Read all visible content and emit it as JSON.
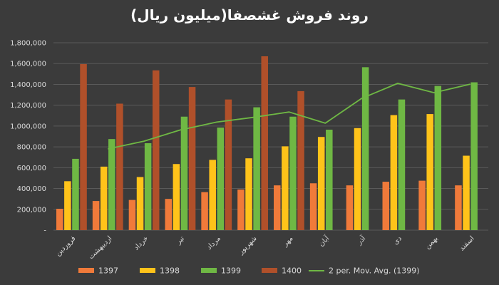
{
  "chart_data": {
    "type": "bar",
    "title": "روند فروش غشصفا(میلیون ریال)",
    "xlabel": "",
    "ylabel": "",
    "ylim": [
      0,
      1800000
    ],
    "yticks": [
      0,
      200000,
      400000,
      600000,
      800000,
      1000000,
      1200000,
      1400000,
      1600000,
      1800000
    ],
    "ytick_labels": [
      "-",
      "200,000",
      "400,000",
      "600,000",
      "800,000",
      "1,000,000",
      "1,200,000",
      "1,400,000",
      "1,600,000",
      "1,800,000"
    ],
    "grid": true,
    "legend_position": "bottom",
    "categories": [
      "فروردین",
      "اردیبهشت",
      "خرداد",
      "تیر",
      "مرداد",
      "شهریور",
      "مهر",
      "آبان",
      "آذر",
      "دی",
      "بهمن",
      "اسفند"
    ],
    "series": [
      {
        "name": "1397",
        "color": "#f07a3a",
        "values": [
          205000,
          280000,
          290000,
          300000,
          365000,
          390000,
          430000,
          450000,
          430000,
          465000,
          475000,
          430000
        ]
      },
      {
        "name": "1398",
        "color": "#ffc31a",
        "values": [
          470000,
          610000,
          510000,
          635000,
          675000,
          690000,
          805000,
          895000,
          980000,
          1105000,
          1115000,
          715000
        ]
      },
      {
        "name": "1399",
        "color": "#6fb844",
        "values": [
          685000,
          875000,
          835000,
          1090000,
          985000,
          1180000,
          1090000,
          965000,
          1565000,
          1255000,
          1385000,
          1420000
        ]
      },
      {
        "name": "1400",
        "color": "#b0502a",
        "values": [
          1595000,
          1215000,
          1535000,
          1375000,
          1255000,
          1670000,
          1335000,
          null,
          null,
          null,
          null,
          null
        ]
      }
    ],
    "trendline": {
      "name": "2 per. Mov. Avg. (1399)",
      "color": "#6fb844",
      "values": [
        null,
        780000,
        855000,
        962500,
        1037500,
        1082500,
        1135000,
        1027500,
        1265000,
        1410000,
        1320000,
        1402500
      ]
    }
  }
}
